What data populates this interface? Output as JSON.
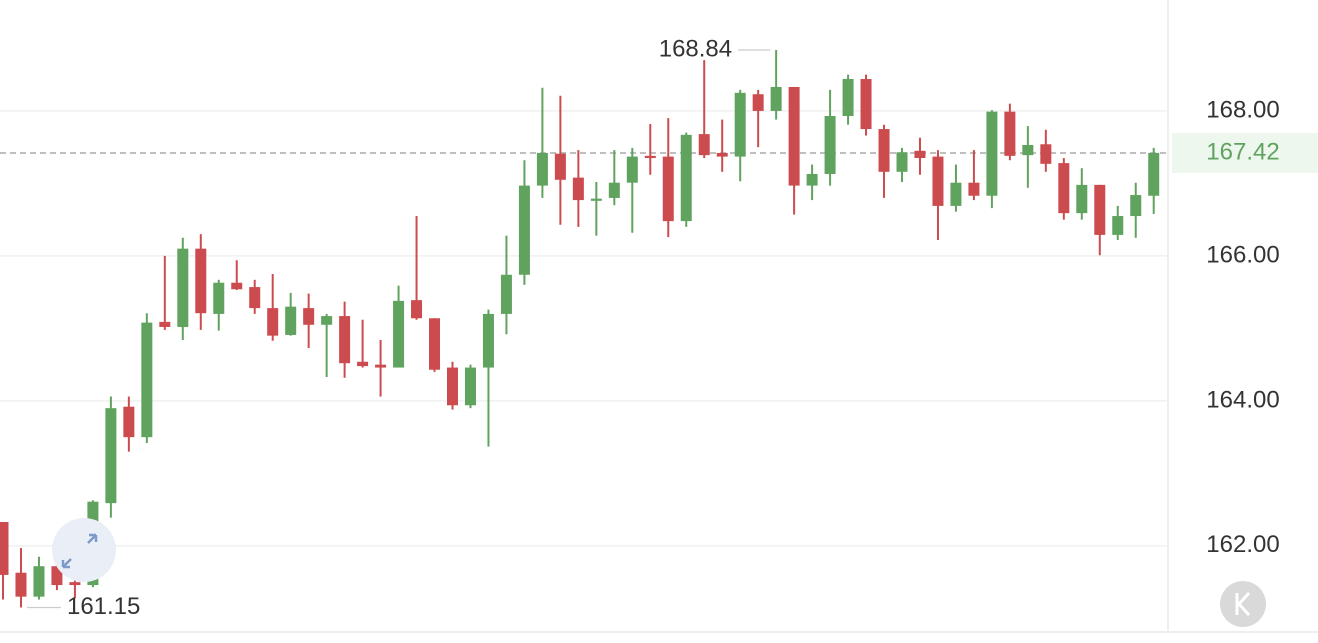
{
  "chart_data": {
    "type": "candlestick",
    "open": [
      162.33,
      161.63,
      161.3,
      161.72,
      161.5,
      161.46,
      162.59,
      163.92,
      163.5,
      165.09,
      165.02,
      166.1,
      165.2,
      165.63,
      165.57,
      165.28,
      164.91,
      165.28,
      165.05,
      165.17,
      164.54,
      164.5,
      164.46,
      165.39,
      165.14,
      164.46,
      163.94,
      164.46,
      165.2,
      165.74,
      166.97,
      167.41,
      167.08,
      166.76,
      166.8,
      167.01,
      167.38,
      167.37,
      166.48,
      167.68,
      167.42,
      167.37,
      168.23,
      168.0,
      168.33,
      166.97,
      167.13,
      167.93,
      168.44,
      167.75,
      167.16,
      167.45,
      167.37,
      166.69,
      167.01,
      166.83,
      167.99,
      167.39,
      167.54,
      167.28,
      166.59,
      166.98,
      166.29,
      166.55,
      166.83
    ],
    "high": [
      162.33,
      161.97,
      161.85,
      161.94,
      161.74,
      162.63,
      164.06,
      164.06,
      165.21,
      166.0,
      166.25,
      166.3,
      165.67,
      165.94,
      165.67,
      165.75,
      165.49,
      165.48,
      165.2,
      165.37,
      165.12,
      164.84,
      165.59,
      166.55,
      165.14,
      164.54,
      164.5,
      165.26,
      166.28,
      167.32,
      168.32,
      168.21,
      167.46,
      167.02,
      167.46,
      167.49,
      167.82,
      167.9,
      167.7,
      168.7,
      167.88,
      168.29,
      168.29,
      168.84,
      168.33,
      167.26,
      168.29,
      168.5,
      168.5,
      167.81,
      167.49,
      167.63,
      167.46,
      167.26,
      167.46,
      168.01,
      168.1,
      167.79,
      167.74,
      167.35,
      167.21,
      166.98,
      166.69,
      167.01,
      167.49
    ],
    "low": [
      161.26,
      161.15,
      161.26,
      161.39,
      161.28,
      161.43,
      162.39,
      163.3,
      163.42,
      164.98,
      164.84,
      164.98,
      164.97,
      165.53,
      165.2,
      164.83,
      164.9,
      164.73,
      164.33,
      164.32,
      164.46,
      164.06,
      164.46,
      165.12,
      164.4,
      163.88,
      163.9,
      163.37,
      164.92,
      165.6,
      166.8,
      166.43,
      166.4,
      166.28,
      166.7,
      166.32,
      167.12,
      166.26,
      166.4,
      167.35,
      167.16,
      167.03,
      167.5,
      167.88,
      166.57,
      166.77,
      166.97,
      167.81,
      167.66,
      166.8,
      167.02,
      167.12,
      166.22,
      166.61,
      166.77,
      166.66,
      167.32,
      166.94,
      167.16,
      166.5,
      166.5,
      166.01,
      166.22,
      166.25,
      166.58
    ],
    "close": [
      161.6,
      161.3,
      161.72,
      161.46,
      161.46,
      162.61,
      163.9,
      163.5,
      165.08,
      165.02,
      166.1,
      165.21,
      165.63,
      165.54,
      165.28,
      164.9,
      165.3,
      165.05,
      165.17,
      164.52,
      164.48,
      164.46,
      165.38,
      165.14,
      164.43,
      163.94,
      164.46,
      165.2,
      165.74,
      166.97,
      167.42,
      167.05,
      166.77,
      166.79,
      167.01,
      167.37,
      167.35,
      166.48,
      167.67,
      167.39,
      167.37,
      168.25,
      168.0,
      168.33,
      166.97,
      167.13,
      167.93,
      168.44,
      167.75,
      167.16,
      167.43,
      167.35,
      166.69,
      167.01,
      166.83,
      167.99,
      167.38,
      167.53,
      167.27,
      166.59,
      166.98,
      166.29,
      166.55,
      166.84,
      167.42
    ],
    "up_color": "#5fa35f",
    "down_color": "#cc4b4e",
    "ylim": [
      160.84,
      169.53
    ],
    "yticks": [
      {
        "value": 162,
        "label": "162.00"
      },
      {
        "value": 164,
        "label": "164.00"
      },
      {
        "value": 166,
        "label": "166.00"
      },
      {
        "value": 168,
        "label": "168.00"
      }
    ],
    "grid": true
  }
}
